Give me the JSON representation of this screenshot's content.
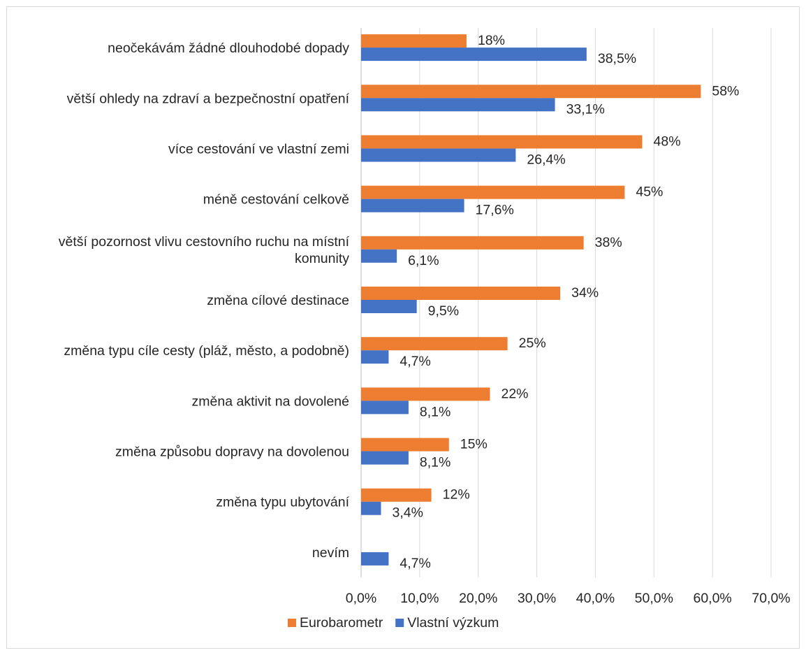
{
  "chart_data": {
    "type": "bar",
    "orientation": "horizontal",
    "categories": [
      [
        "neočekávám žádné dlouhodobé dopady"
      ],
      [
        "větší ohledy na zdraví a bezpečnostní opatření"
      ],
      [
        "více cestování ve vlastní zemi"
      ],
      [
        "méně cestování celkově"
      ],
      [
        "větší pozornost vlivu cestovního ruchu na místní",
        "komunity"
      ],
      [
        "změna cílové destinace"
      ],
      [
        "změna typu cíle cesty (pláž, město, a podobně)"
      ],
      [
        "změna aktivit na dovolené"
      ],
      [
        "změna způsobu dopravy na dovolenou"
      ],
      [
        "změna typu ubytování"
      ],
      [
        "nevím"
      ]
    ],
    "series": [
      {
        "name": "Eurobarometr",
        "color": "#ed7d31",
        "values": [
          18,
          58,
          48,
          45,
          38,
          34,
          25,
          22,
          15,
          12,
          null
        ],
        "labels": [
          "18%",
          "58%",
          "48%",
          "45%",
          "38%",
          "34%",
          "25%",
          "22%",
          "15%",
          "12%",
          null
        ]
      },
      {
        "name": "Vlastní výzkum",
        "color": "#4472c4",
        "values": [
          38.5,
          33.1,
          26.4,
          17.6,
          6.1,
          9.5,
          4.7,
          8.1,
          8.1,
          3.4,
          4.7
        ],
        "labels": [
          "38,5%",
          "33,1%",
          "26,4%",
          "17,6%",
          "6,1%",
          "9,5%",
          "4,7%",
          "8,1%",
          "8,1%",
          "3,4%",
          "4,7%"
        ]
      }
    ],
    "xlim": [
      0,
      70
    ],
    "xticks": [
      0,
      10,
      20,
      30,
      40,
      50,
      60,
      70
    ],
    "xtick_labels": [
      "0,0%",
      "10,0%",
      "20,0%",
      "30,0%",
      "40,0%",
      "50,0%",
      "60,0%",
      "70,0%"
    ],
    "grid": "vertical",
    "legend_position": "bottom",
    "title": "",
    "xlabel": "",
    "ylabel": ""
  }
}
